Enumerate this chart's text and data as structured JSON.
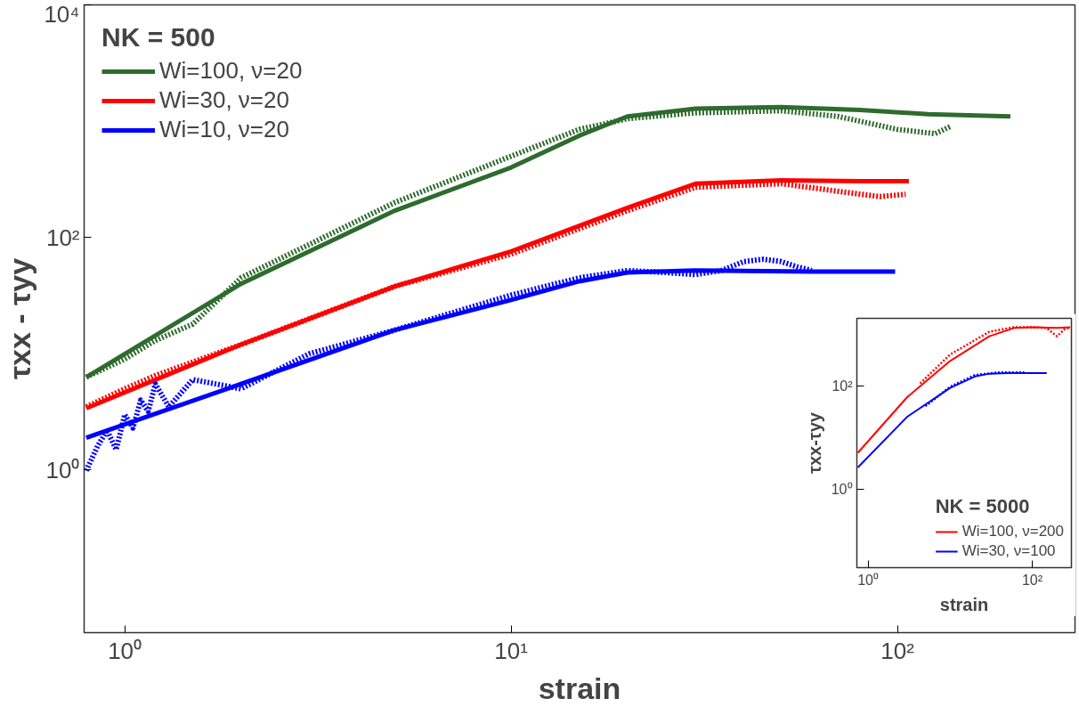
{
  "chart_data": [
    {
      "type": "line",
      "xlabel": "strain",
      "ylabel": "τxx - τyy",
      "legend_title": "NK = 500",
      "legend": "top left",
      "log": "xy",
      "grid": false,
      "xlim": [
        0.785,
        288
      ],
      "ylim": [
        0.04,
        10000
      ],
      "xticks": [
        {
          "value": 1,
          "label": "10⁰"
        },
        {
          "value": 10,
          "label": "10¹"
        },
        {
          "value": 100,
          "label": "10²"
        }
      ],
      "yticks": [
        {
          "value": 1,
          "label": "10⁰"
        },
        {
          "value": 100,
          "label": "10²"
        },
        {
          "value": 10000,
          "label": "10⁴"
        }
      ],
      "series": [
        {
          "name": "Wi=100, ν=20",
          "color": "#2e6b2e",
          "line_style": "solid",
          "x": [
            0.795,
            2,
            5,
            10,
            15,
            20,
            30,
            50,
            80,
            120,
            196
          ],
          "values": [
            6.3,
            40,
            170,
            400,
            750,
            1100,
            1280,
            1320,
            1250,
            1150,
            1100
          ]
        },
        {
          "name": "Wi=30, ν=20",
          "color": "#ff0000",
          "line_style": "solid",
          "x": [
            0.795,
            2,
            5,
            10,
            20,
            30,
            50,
            80,
            107
          ],
          "values": [
            3.4,
            12,
            38,
            76,
            180,
            290,
            310,
            305,
            305
          ]
        },
        {
          "name": "Wi=10, ν=20",
          "color": "#0000ff",
          "line_style": "solid",
          "x": [
            0.795,
            2,
            5,
            10,
            15,
            20,
            30,
            60,
            98.6
          ],
          "values": [
            1.9,
            5.5,
            16,
            29,
            42,
            50,
            52,
            51,
            51
          ]
        },
        {
          "color": "#2e6b2e",
          "line_style": "dotted",
          "x": [
            0.795,
            1.0,
            1.2,
            1.5,
            2,
            5,
            10,
            15,
            20,
            30,
            50,
            70,
            100,
            125,
            137
          ],
          "values": [
            6.3,
            9,
            13,
            18,
            45,
            200,
            500,
            850,
            1050,
            1180,
            1230,
            1100,
            850,
            780,
            900
          ]
        },
        {
          "color": "#ff0000",
          "line_style": "dotted",
          "x": [
            0.795,
            1.0,
            1.2,
            2,
            5,
            10,
            20,
            30,
            50,
            70,
            90,
            105
          ],
          "values": [
            3.5,
            5,
            6.5,
            12,
            38,
            72,
            170,
            270,
            290,
            250,
            225,
            235
          ]
        },
        {
          "color": "#0000ff",
          "line_style": "dotted",
          "x": [
            0.795,
            0.85,
            0.9,
            0.95,
            1.0,
            1.05,
            1.1,
            1.15,
            1.2,
            1.3,
            1.5,
            2,
            3,
            5,
            10,
            15,
            20,
            25,
            30,
            35,
            40,
            45,
            50,
            55,
            60
          ],
          "values": [
            0.99,
            1.6,
            2.2,
            1.5,
            3,
            2.3,
            4,
            3.2,
            5.5,
            3.5,
            6,
            5,
            10,
            16,
            32,
            45,
            52,
            50,
            48,
            52,
            62,
            65,
            62,
            56,
            52
          ]
        }
      ]
    },
    {
      "type": "line",
      "xlabel": "strain",
      "ylabel": "τxx-τyy",
      "legend_title": "NK = 5000",
      "legend": "bottom right",
      "log": "xy",
      "grid": false,
      "xlim": [
        0.73,
        300
      ],
      "ylim": [
        0.03,
        2000
      ],
      "xticks": [
        {
          "value": 1,
          "label": "10⁰"
        },
        {
          "value": 100,
          "label": "10²"
        }
      ],
      "yticks": [
        {
          "value": 1,
          "label": "10⁰"
        },
        {
          "value": 100,
          "label": "10²"
        }
      ],
      "series": [
        {
          "name": "Wi=100, ν=200",
          "color": "#ff0000",
          "line_style": "solid",
          "x": [
            0.75,
            3,
            10,
            30,
            60,
            100,
            200,
            290
          ],
          "values": [
            5,
            60,
            300,
            900,
            1300,
            1350,
            1300,
            1350
          ]
        },
        {
          "name": "Wi=30, ν=100",
          "color": "#0000ff",
          "line_style": "solid",
          "x": [
            0.75,
            3,
            10,
            20,
            30,
            50,
            150
          ],
          "values": [
            2.6,
            25,
            90,
            150,
            170,
            175,
            175
          ]
        },
        {
          "color": "#ff0000",
          "line_style": "dotted",
          "x": [
            4.3,
            10,
            30,
            60,
            100,
            150,
            200,
            250,
            290
          ],
          "values": [
            110,
            400,
            1100,
            1350,
            1350,
            1300,
            900,
            1250,
            1300
          ]
        },
        {
          "color": "#0000ff",
          "line_style": "dotted",
          "x": [
            5,
            10,
            20,
            40,
            80
          ],
          "values": [
            40,
            95,
            160,
            180,
            180
          ]
        }
      ]
    }
  ]
}
